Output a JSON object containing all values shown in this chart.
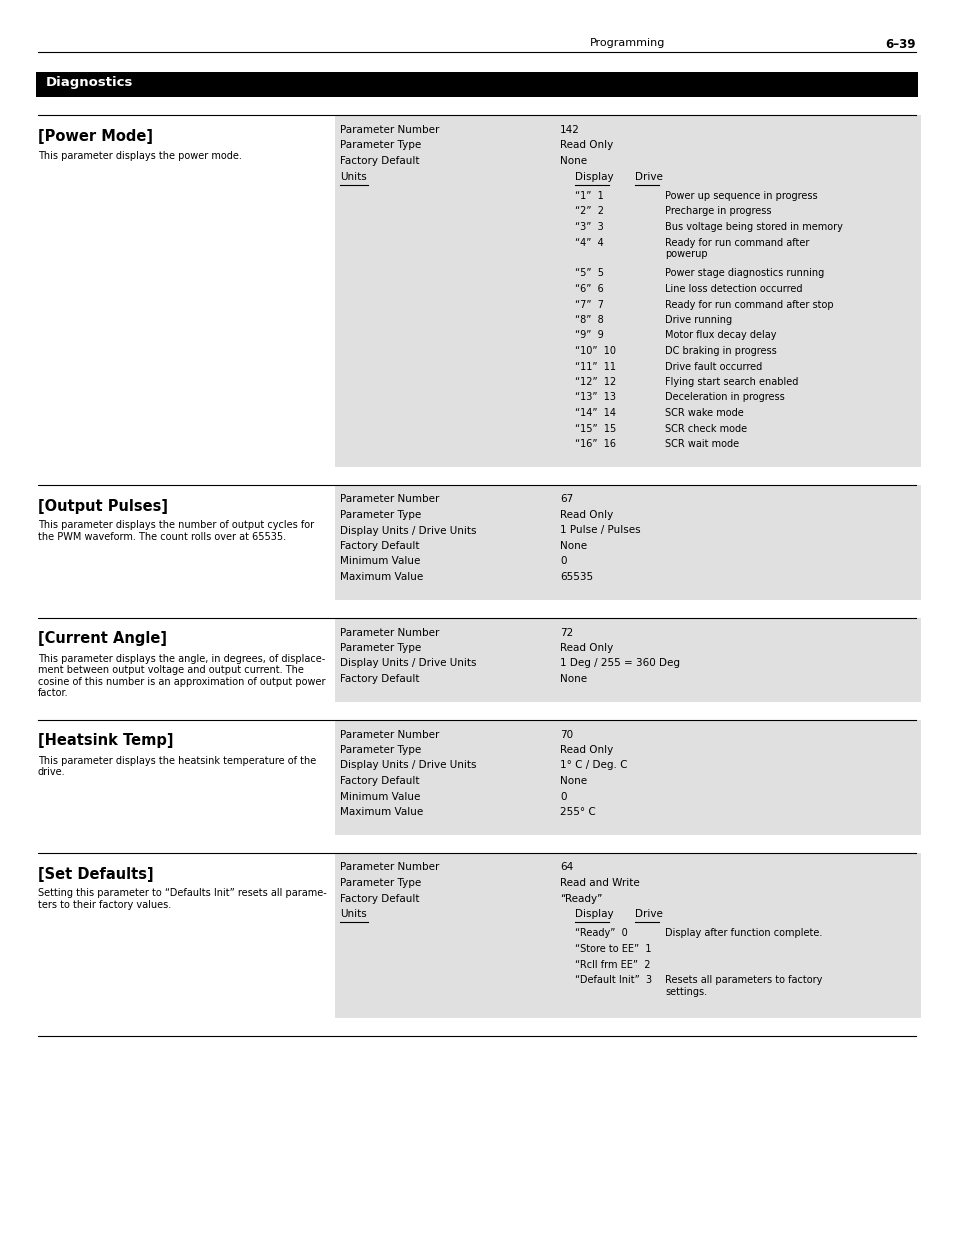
{
  "page_header_left": "Programming",
  "page_header_right": "6–39",
  "section_title": "Diagnostics",
  "bg_color": "#ffffff",
  "header_bg": "#000000",
  "header_text_color": "#ffffff",
  "row_bg": "#e0e0e0",
  "params": [
    {
      "title": "[Power Mode]",
      "description": "This parameter displays the power mode.",
      "param_number": "142",
      "param_type": "Read Only",
      "factory_default": "None",
      "has_units": true,
      "units_label": "Units",
      "units_col1": "Display",
      "units_col2": "Drive",
      "units_rows": [
        [
          "“1”  1",
          "Power up sequence in progress"
        ],
        [
          "“2”  2",
          "Precharge in progress"
        ],
        [
          "“3”  3",
          "Bus voltage being stored in memory"
        ],
        [
          "“4”  4",
          "Ready for run command after\npowerup"
        ],
        [
          "“5”  5",
          "Power stage diagnostics running"
        ],
        [
          "“6”  6",
          "Line loss detection occurred"
        ],
        [
          "“7”  7",
          "Ready for run command after stop"
        ],
        [
          "“8”  8",
          "Drive running"
        ],
        [
          "“9”  9",
          "Motor flux decay delay"
        ],
        [
          "“10”  10",
          "DC braking in progress"
        ],
        [
          "“11”  11",
          "Drive fault occurred"
        ],
        [
          "“12”  12",
          "Flying start search enabled"
        ],
        [
          "“13”  13",
          "Deceleration in progress"
        ],
        [
          "“14”  14",
          "SCR wake mode"
        ],
        [
          "“15”  15",
          "SCR check mode"
        ],
        [
          "“16”  16",
          "SCR wait mode"
        ]
      ]
    },
    {
      "title": "[Output Pulses]",
      "description": "This parameter displays the number of output cycles for\nthe PWM waveform. The count rolls over at 65535.",
      "param_number": "67",
      "param_type": "Read Only",
      "display_drive_units": "Display Units / Drive Units",
      "display_drive_units_val": "1 Pulse / Pulses",
      "factory_default": "None",
      "min_value": "0",
      "max_value": "65535",
      "has_units": false,
      "units_rows": []
    },
    {
      "title": "[Current Angle]",
      "description": "This parameter displays the angle, in degrees, of displace-\nment between output voltage and output current. The\ncosine of this number is an approximation of output power\nfactor.",
      "param_number": "72",
      "param_type": "Read Only",
      "display_drive_units": "Display Units / Drive Units",
      "display_drive_units_val": "1 Deg / 255 = 360 Deg",
      "factory_default": "None",
      "has_units": false,
      "units_rows": []
    },
    {
      "title": "[Heatsink Temp]",
      "description": "This parameter displays the heatsink temperature of the\ndrive.",
      "param_number": "70",
      "param_type": "Read Only",
      "display_drive_units": "Display Units / Drive Units",
      "display_drive_units_val": "1° C / Deg. C",
      "factory_default": "None",
      "min_value": "0",
      "max_value": "255° C",
      "has_units": false,
      "units_rows": []
    },
    {
      "title": "[Set Defaults]",
      "description": "Setting this parameter to “Defaults Init” resets all parame-\nters to their factory values.",
      "param_number": "64",
      "param_type": "Read and Write",
      "factory_default": "“Ready”",
      "has_units": true,
      "units_label": "Units",
      "units_col1": "Display",
      "units_col2": "Drive",
      "units_rows": [
        [
          "“Ready”  0",
          "Display after function complete."
        ],
        [
          "“Store to EE”  1",
          ""
        ],
        [
          "“Rcll frm EE”  2",
          ""
        ],
        [
          "“Default Init”  3",
          "Resets all parameters to factory\nsettings."
        ]
      ]
    }
  ]
}
